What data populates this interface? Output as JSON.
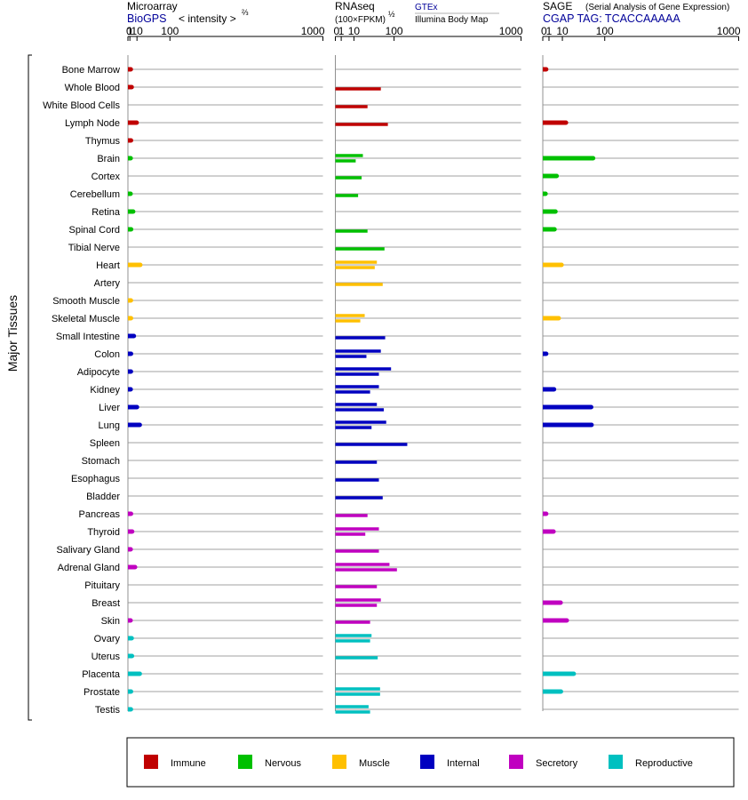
{
  "y_axis_label": "Major Tissues",
  "panels": {
    "microarray": {
      "title": "Microarray",
      "subtitle": "BioGPS",
      "scale_text": "< intensity >",
      "scale_exp": "⅔"
    },
    "rnaseq": {
      "title": "RNAseq",
      "scale_text": "(100×FPKM)",
      "scale_exp": "½",
      "source_top": "GTEx",
      "source_bottom": "Illumina Body Map"
    },
    "sage": {
      "title": "SAGE",
      "title_note": "(Serial Analysis of Gene Expression)",
      "subtitle": "CGAP TAG: TCACCAAAAA"
    }
  },
  "axis_ticks": [
    "0",
    "1",
    "10",
    "100",
    "1000"
  ],
  "colors": {
    "Immune": "#c00000",
    "Nervous": "#00c000",
    "Muscle": "#ffc000",
    "Internal": "#0000c0",
    "Secretory": "#c000c0",
    "Reproductive": "#00c0c0",
    "gridline": "#808080",
    "title_blue": "#000099"
  },
  "legend": [
    "Immune",
    "Nervous",
    "Muscle",
    "Internal",
    "Secretory",
    "Reproductive"
  ],
  "chart_data": {
    "type": "bar",
    "orientation": "horizontal",
    "x_scale": "power",
    "categories": [
      "Bone Marrow",
      "Whole Blood",
      "White Blood Cells",
      "Lymph Node",
      "Thymus",
      "Brain",
      "Cortex",
      "Cerebellum",
      "Retina",
      "Spinal Cord",
      "Tibial Nerve",
      "Heart",
      "Artery",
      "Smooth Muscle",
      "Skeletal Muscle",
      "Small Intestine",
      "Colon",
      "Adipocyte",
      "Kidney",
      "Liver",
      "Lung",
      "Spleen",
      "Stomach",
      "Esophagus",
      "Bladder",
      "Pancreas",
      "Thyroid",
      "Salivary Gland",
      "Adrenal Gland",
      "Pituitary",
      "Breast",
      "Skin",
      "Ovary",
      "Uterus",
      "Placenta",
      "Prostate",
      "Testis"
    ],
    "groups": [
      "Immune",
      "Immune",
      "Immune",
      "Immune",
      "Immune",
      "Nervous",
      "Nervous",
      "Nervous",
      "Nervous",
      "Nervous",
      "Nervous",
      "Muscle",
      "Muscle",
      "Muscle",
      "Muscle",
      "Internal",
      "Internal",
      "Internal",
      "Internal",
      "Internal",
      "Internal",
      "Internal",
      "Internal",
      "Internal",
      "Internal",
      "Secretory",
      "Secretory",
      "Secretory",
      "Secretory",
      "Secretory",
      "Secretory",
      "Secretory",
      "Reproductive",
      "Reproductive",
      "Reproductive",
      "Reproductive",
      "Reproductive"
    ],
    "series": [
      {
        "name": "Microarray",
        "values": [
          1.8,
          2.7,
          null,
          9.5,
          2.0,
          1.7,
          null,
          1.6,
          4.4,
          2.1,
          null,
          16,
          null,
          1.9,
          2.0,
          5.3,
          2.0,
          1.9,
          1.7,
          10,
          15,
          null,
          null,
          null,
          null,
          2.0,
          3.2,
          1.7,
          7.0,
          null,
          null,
          1.6,
          2.7,
          3.0,
          15,
          2.0,
          1.9
        ]
      },
      {
        "name": "RNAseq GTEx",
        "values": [
          null,
          60,
          30,
          80,
          null,
          22,
          20,
          15,
          null,
          30,
          70,
          50,
          65,
          null,
          25,
          72,
          60,
          90,
          55,
          50,
          75,
          150,
          50,
          55,
          65,
          30,
          55,
          55,
          85,
          50,
          60,
          35,
          38,
          52,
          null,
          58,
          32
        ]
      },
      {
        "name": "RNAseq Illumina Body Map",
        "values": [
          null,
          null,
          null,
          null,
          null,
          12,
          null,
          null,
          null,
          null,
          null,
          45,
          null,
          null,
          18,
          null,
          28,
          55,
          35,
          68,
          38,
          null,
          null,
          null,
          null,
          null,
          26,
          null,
          110,
          null,
          50,
          null,
          35,
          null,
          null,
          58,
          35
        ]
      },
      {
        "name": "SAGE",
        "values": [
          0.3,
          null,
          null,
          14,
          null,
          66,
          5,
          0.2,
          4.2,
          3.6,
          null,
          9.2,
          null,
          null,
          6.6,
          null,
          0.3,
          null,
          3.3,
          61,
          62,
          null,
          null,
          null,
          null,
          0.3,
          3.0,
          null,
          null,
          null,
          8.3,
          15,
          null,
          null,
          25,
          8.6,
          null
        ]
      }
    ]
  }
}
